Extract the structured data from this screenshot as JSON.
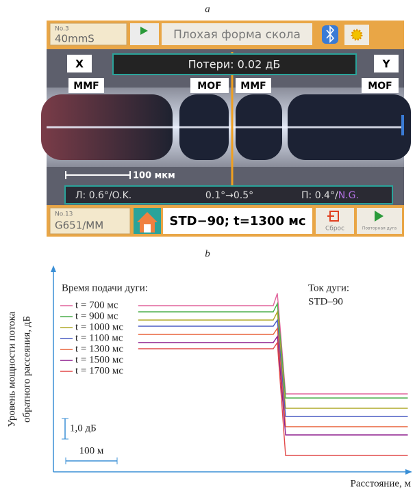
{
  "panel_a_label": "a",
  "screenshot": {
    "program_no": "No.3",
    "program": "40mmS",
    "message": "Плохая форма скола",
    "loss": "Потери: 0.02 дБ",
    "left_camera": "X",
    "right_camera": "Y",
    "fiber_labels": [
      "MMF",
      "MOF",
      "MMF",
      "MOF"
    ],
    "scale": "100 мкм",
    "left_angle": "Л: 0.6°/O.K.",
    "angle_range": "0.1°→0.5°",
    "right_angle": "П: 0.4°/",
    "right_status": "N.G.",
    "fiber_no": "No.13",
    "fiber": "G651/MM",
    "arc": "STD−90; t=1300 мс",
    "reset": "Сброс",
    "repeat": "Повторная дуга"
  },
  "panel_b_label": "b",
  "chart_data": {
    "type": "line",
    "legend_title": "Время подачи дуги:",
    "annotation": [
      "Ток дуги:",
      "STD–90"
    ],
    "x_label": "Расстояние, м",
    "y_label": [
      "Уровень мощности потока",
      "обратного рассеяния, дБ"
    ],
    "x": [
      165,
      428,
      436,
      452,
      690
    ],
    "xlim": [
      0,
      690
    ],
    "ylim": [
      0,
      10
    ],
    "series": [
      {
        "name": "t = 700 мс",
        "color": "#e0649b",
        "values": [
          8.1,
          8.1,
          8.7,
          3.8,
          3.8
        ]
      },
      {
        "name": "t = 900 мс",
        "color": "#4cae4c",
        "values": [
          7.8,
          7.8,
          8.2,
          3.6,
          3.6
        ]
      },
      {
        "name": "t = 1000 мс",
        "color": "#b0aa2a",
        "values": [
          7.4,
          7.4,
          7.8,
          3.1,
          3.1
        ]
      },
      {
        "name": "t = 1100 мс",
        "color": "#4a5cc4",
        "values": [
          7.1,
          7.1,
          7.4,
          2.7,
          2.7
        ]
      },
      {
        "name": "t = 1300 мс",
        "color": "#e8643c",
        "values": [
          6.7,
          6.7,
          7.0,
          2.2,
          2.2
        ]
      },
      {
        "name": "t = 1500 мс",
        "color": "#8e1e8e",
        "values": [
          6.3,
          6.3,
          6.6,
          1.8,
          1.8
        ]
      },
      {
        "name": "t = 1700 мс",
        "color": "#e24a4a",
        "values": [
          6.0,
          6.0,
          6.3,
          0.8,
          0.8
        ]
      }
    ],
    "scale_y": {
      "value": 1.0,
      "label": "1,0 дБ"
    },
    "scale_x": {
      "value": 100,
      "label": "100 м"
    }
  }
}
